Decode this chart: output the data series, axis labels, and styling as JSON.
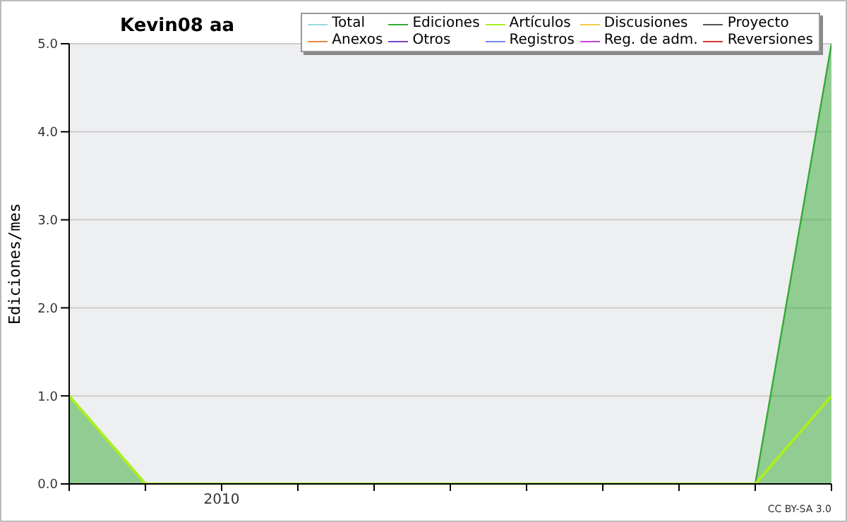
{
  "chart_data": {
    "type": "line",
    "title": "Kevin08 aa",
    "ylabel": "Ediciones/mes",
    "annotations": [
      "CC BY-SA 3.0"
    ],
    "categories": [
      null,
      null,
      "2010",
      null,
      null,
      null,
      null,
      null,
      null,
      null,
      null
    ],
    "ylim": [
      0,
      5
    ],
    "yticks": [
      {
        "value": 0,
        "label": "0.0"
      },
      {
        "value": 1,
        "label": "1.0"
      },
      {
        "value": 2,
        "label": "2.0"
      },
      {
        "value": 3,
        "label": "3.0"
      },
      {
        "value": 4,
        "label": "4.0"
      },
      {
        "value": 5,
        "label": "5.0"
      }
    ],
    "grid": "y",
    "legend": "top right",
    "series": [
      {
        "name": "Total",
        "color": "#99dddd",
        "values": [
          null,
          null,
          null,
          null,
          null,
          null,
          null,
          null,
          null,
          null,
          null
        ]
      },
      {
        "name": "Ediciones",
        "color": "#33aa33",
        "type": "area",
        "values": [
          1,
          0,
          0,
          0,
          0,
          0,
          0,
          0,
          0,
          0,
          5
        ]
      },
      {
        "name": "Artículos",
        "color": "#aaee22",
        "values": [
          1,
          0,
          0,
          0,
          0,
          0,
          0,
          0,
          0,
          0,
          1
        ]
      },
      {
        "name": "Discusiones",
        "color": "#eecc44",
        "values": [
          null,
          null,
          null,
          null,
          null,
          null,
          null,
          null,
          null,
          null,
          null
        ]
      },
      {
        "name": "Proyecto",
        "color": "#555555",
        "values": [
          null,
          null,
          null,
          null,
          null,
          null,
          null,
          null,
          null,
          null,
          null
        ]
      },
      {
        "name": "Anexos",
        "color": "#ee8844",
        "values": [
          null,
          null,
          null,
          null,
          null,
          null,
          null,
          null,
          null,
          null,
          null
        ]
      },
      {
        "name": "Otros",
        "color": "#7744cc",
        "values": [
          null,
          null,
          null,
          null,
          null,
          null,
          null,
          null,
          null,
          null,
          null
        ]
      },
      {
        "name": "Registros",
        "color": "#7788ee",
        "values": [
          null,
          null,
          null,
          null,
          null,
          null,
          null,
          null,
          null,
          null,
          null
        ]
      },
      {
        "name": "Reg. de adm.",
        "color": "#cc44dd",
        "values": [
          null,
          null,
          null,
          null,
          null,
          null,
          null,
          null,
          null,
          null,
          null
        ]
      },
      {
        "name": "Reversiones",
        "color": "#dd3333",
        "values": [
          null,
          null,
          null,
          null,
          null,
          null,
          null,
          null,
          null,
          null,
          null
        ]
      }
    ]
  }
}
